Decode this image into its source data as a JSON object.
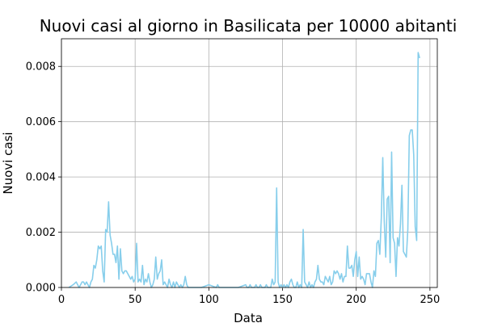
{
  "chart_data": {
    "type": "line",
    "title": "Nuovi casi al giorno in Basilicata per 10000 abitanti",
    "xlabel": "Data",
    "ylabel": "Nuovi casi",
    "xlim": [
      0,
      255
    ],
    "ylim": [
      0,
      0.009
    ],
    "xticks": [
      0,
      50,
      100,
      150,
      200,
      250
    ],
    "xtick_labels": [
      "0",
      "50",
      "100",
      "150",
      "200",
      "250"
    ],
    "yticks": [
      0,
      0.002,
      0.004,
      0.006,
      0.008
    ],
    "ytick_labels": [
      "0.000",
      "0.002",
      "0.004",
      "0.006",
      "0.008"
    ],
    "grid": true,
    "legend": false,
    "line_color": "#87ceeb",
    "series": [
      {
        "x": [
          5,
          8,
          10,
          11,
          12,
          13,
          14,
          15,
          16,
          17,
          18,
          19,
          20,
          21,
          22,
          23,
          24,
          25,
          26,
          27,
          28,
          29,
          30,
          31,
          32,
          33,
          34,
          35,
          36,
          37,
          38,
          39,
          40,
          41,
          42,
          43,
          44,
          45,
          46,
          47,
          48,
          49,
          50,
          51,
          52,
          53,
          54,
          55,
          56,
          57,
          58,
          59,
          60,
          61,
          62,
          63,
          64,
          65,
          66,
          67,
          68,
          69,
          70,
          71,
          72,
          73,
          74,
          75,
          76,
          77,
          78,
          79,
          80,
          81,
          82,
          83,
          84,
          85,
          86,
          87,
          88,
          89,
          90,
          91,
          92,
          95,
          100,
          105,
          106,
          107,
          108,
          110,
          120,
          125,
          126,
          127,
          128,
          129,
          130,
          131,
          132,
          133,
          134,
          135,
          136,
          137,
          138,
          139,
          140,
          141,
          142,
          143,
          144,
          145,
          146,
          147,
          148,
          149,
          150,
          151,
          152,
          153,
          154,
          155,
          156,
          157,
          158,
          159,
          160,
          161,
          162,
          163,
          164,
          165,
          166,
          167,
          168,
          169,
          170,
          171,
          172,
          173,
          174,
          175,
          176,
          177,
          178,
          179,
          180,
          181,
          182,
          183,
          184,
          185,
          186,
          187,
          188,
          189,
          190,
          191,
          192,
          193,
          194,
          195,
          196,
          197,
          198,
          199,
          200,
          201,
          202,
          203,
          204,
          205,
          206,
          207,
          208,
          209,
          210,
          211,
          212,
          213,
          214,
          215,
          216,
          217,
          218,
          219,
          220,
          221,
          222,
          223,
          224,
          225,
          226,
          227,
          228,
          229,
          230,
          231,
          232,
          233,
          234,
          235,
          236,
          237,
          238,
          239,
          240,
          241,
          242,
          243
        ],
        "y": [
          0,
          0.0001,
          0.0002,
          0.0001,
          0,
          0.0001,
          0.0002,
          0.0002,
          0.0001,
          0.0002,
          0.0001,
          0,
          0.0002,
          0.0003,
          0.0008,
          0.0007,
          0.001,
          0.0015,
          0.0014,
          0.0015,
          0.0006,
          0.0002,
          0.0021,
          0.002,
          0.0031,
          0.0019,
          0.0016,
          0.0012,
          0.0012,
          0.0009,
          0.0015,
          0.0003,
          0.0014,
          0.0006,
          0.0005,
          0.0006,
          0.0006,
          0.0005,
          0.0004,
          0.0003,
          0.0004,
          0.0002,
          0.0003,
          0.0016,
          0.0002,
          0.0003,
          0.0002,
          0.0008,
          0.0001,
          0.0003,
          0.0002,
          0.0005,
          0.0002,
          0,
          0.0001,
          0.0003,
          0.0011,
          0.0003,
          0.0005,
          0.0006,
          0.001,
          0.0001,
          0.0002,
          0.0001,
          0,
          0.0003,
          0.0001,
          0,
          0.0002,
          0,
          0.0002,
          0.0001,
          0,
          0.0001,
          0,
          0.0001,
          0.0004,
          0.0001,
          0,
          0,
          0,
          0,
          0,
          0,
          0,
          0,
          0.0001,
          0,
          0.0001,
          0,
          0,
          0,
          0,
          0.0001,
          0,
          0,
          0.0001,
          0,
          0,
          0,
          0.0001,
          0,
          0,
          0.0001,
          0,
          0,
          0,
          0.0001,
          0,
          0,
          0,
          0.0003,
          0.0001,
          0.0002,
          0.0036,
          0.0002,
          0,
          0.0001,
          0,
          0.0001,
          0,
          0.0001,
          0,
          0.0002,
          0.0003,
          0.0001,
          0,
          0,
          0.0002,
          0,
          0.0001,
          0,
          0.0021,
          0.0002,
          0.0001,
          0,
          0.0002,
          0,
          0.0001,
          0,
          0.0002,
          0.0003,
          0.0008,
          0.0003,
          0.0002,
          0.0002,
          0.0001,
          0.0004,
          0.0003,
          0.0002,
          0.0004,
          0.0001,
          0.0002,
          0.0006,
          0.0005,
          0.0006,
          0.0005,
          0.0003,
          0.0005,
          0.0002,
          0.0004,
          0.0004,
          0.0015,
          0.0007,
          0.0007,
          0.0008,
          0.0004,
          0.001,
          0.0013,
          0.0004,
          0.0011,
          0.0003,
          0.0004,
          0.0003,
          0.0001,
          0.0005,
          0.0005,
          0.0005,
          0.0002,
          0,
          0.0006,
          0.0004,
          0.0016,
          0.0017,
          0.0012,
          0.0025,
          0.0047,
          0.0024,
          0.0011,
          0.0032,
          0.0033,
          0.0009,
          0.0049,
          0.0018,
          0.0016,
          0.0004,
          0.0018,
          0.0015,
          0.0023,
          0.0037,
          0.0013,
          0.0012,
          0.0011,
          0.0021,
          0.0055,
          0.0057,
          0.0057,
          0.0048,
          0.0022,
          0.0017,
          0.0085,
          0.0083
        ]
      }
    ]
  }
}
